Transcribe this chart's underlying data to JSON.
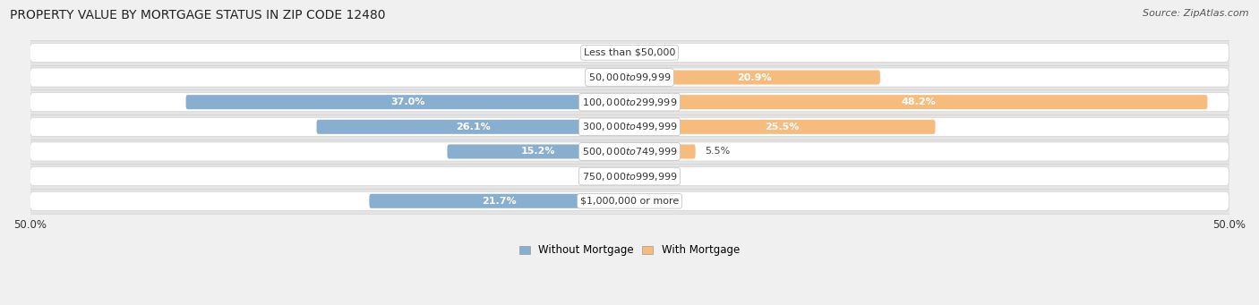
{
  "title": "PROPERTY VALUE BY MORTGAGE STATUS IN ZIP CODE 12480",
  "source": "Source: ZipAtlas.com",
  "categories": [
    "Less than $50,000",
    "$50,000 to $99,999",
    "$100,000 to $299,999",
    "$300,000 to $499,999",
    "$500,000 to $749,999",
    "$750,000 to $999,999",
    "$1,000,000 or more"
  ],
  "without_mortgage": [
    0.0,
    0.0,
    37.0,
    26.1,
    15.2,
    0.0,
    21.7
  ],
  "with_mortgage": [
    0.0,
    20.9,
    48.2,
    25.5,
    5.5,
    0.0,
    0.0
  ],
  "color_without": "#88aed0",
  "color_with": "#f5bc7e",
  "background_fig": "#f0f0f0",
  "background_row": "#e4e4e4",
  "background_bar_area": "#ffffff",
  "xlim_left": -50,
  "xlim_right": 50,
  "title_fontsize": 10,
  "source_fontsize": 8,
  "label_fontsize": 8,
  "category_fontsize": 8,
  "legend_fontsize": 8.5,
  "bar_height": 0.58
}
